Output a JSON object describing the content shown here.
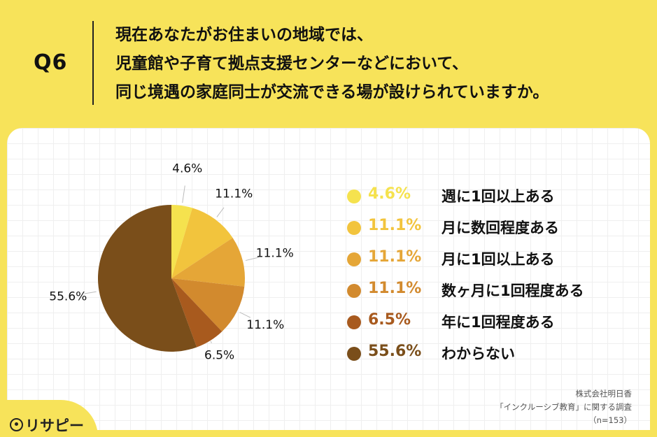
{
  "header": {
    "q_label": "Q6",
    "question_lines": [
      "現在あなたがお住まいの地域では、",
      "児童館や子育て拠点支援センターなどにおいて、",
      "同じ境遇の家庭同士が交流できる場が設けられていますか。"
    ]
  },
  "chart_data": {
    "type": "pie",
    "start_angle": "12 o'clock",
    "direction": "clockwise",
    "categories": [
      "週に1回以上ある",
      "月に数回程度ある",
      "月に1回以上ある",
      "数ヶ月に1回程度ある",
      "年に1回程度ある",
      "わからない"
    ],
    "values": [
      4.6,
      11.1,
      11.1,
      11.1,
      6.5,
      55.6
    ],
    "labels": [
      "4.6%",
      "11.1%",
      "11.1%",
      "11.1%",
      "6.5%",
      "55.6%"
    ],
    "colors": [
      "#F5E24E",
      "#F2C43D",
      "#E5A637",
      "#D28A2E",
      "#A85A1E",
      "#7A4E1A"
    ],
    "legend_position": "right"
  },
  "legend": [
    {
      "pct": "4.6%",
      "label": "週に1回以上ある",
      "color": "#F5E24E"
    },
    {
      "pct": "11.1%",
      "label": "月に数回程度ある",
      "color": "#F2C43D"
    },
    {
      "pct": "11.1%",
      "label": "月に1回以上ある",
      "color": "#E5A637"
    },
    {
      "pct": "11.1%",
      "label": "数ヶ月に1回程度ある",
      "color": "#D28A2E"
    },
    {
      "pct": "6.5%",
      "label": "年に1回程度ある",
      "color": "#A85A1E"
    },
    {
      "pct": "55.6%",
      "label": "わからない",
      "color": "#7A4E1A"
    }
  ],
  "source": {
    "line1": "株式会社明日香",
    "line2": "「インクルーシブ教育」に関する調査",
    "line3": "（n=153）"
  },
  "brand": {
    "name": "リサピー"
  }
}
